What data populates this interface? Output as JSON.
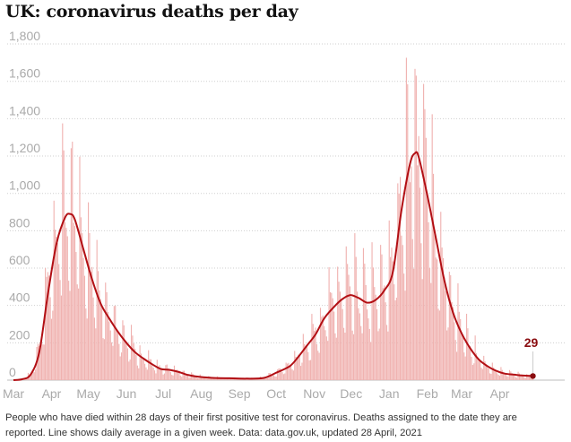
{
  "title": "UK: coronavirus deaths per day",
  "footnote_lines": [
    "People who have died within 28 days of their first positive test for coronavirus. Deaths assigned to the date they are",
    "reported. Line shows daily average in a given week. Data: data.gov.uk, updated 28 April, 2021"
  ],
  "colors": {
    "bars": "#f0b2b0",
    "line": "#b20f14",
    "last_label": "#8a0c10",
    "grid": "#cfcfcf",
    "axis_text": "#aaaaaa",
    "title": "#121212"
  },
  "chart_data": {
    "type": "bar",
    "title": "UK: coronavirus deaths per day",
    "xlabel": "",
    "ylabel": "",
    "x_range": [
      "2020-03-01",
      "2021-04-28"
    ],
    "ylim": [
      0,
      1800
    ],
    "y_ticks": [
      0,
      200,
      400,
      600,
      800,
      1000,
      1200,
      1400,
      1600,
      1800
    ],
    "y_tick_labels": [
      "0",
      "200",
      "400",
      "600",
      "800",
      "1,000",
      "1,200",
      "1,400",
      "1,600",
      "1,800"
    ],
    "x_tick_dates": [
      "2020-03-01",
      "2020-04-01",
      "2020-05-01",
      "2020-06-01",
      "2020-07-01",
      "2020-08-01",
      "2020-09-01",
      "2020-10-01",
      "2020-11-01",
      "2020-12-01",
      "2021-01-01",
      "2021-02-01",
      "2021-03-01",
      "2021-04-01"
    ],
    "x_tick_labels": [
      "Mar",
      "Apr",
      "May",
      "Jun",
      "Jul",
      "Aug",
      "Sep",
      "Oct",
      "Nov",
      "Dec",
      "Jan",
      "Feb",
      "Mar",
      "Apr"
    ],
    "grid": true,
    "bars_label": "daily deaths",
    "line_label": "daily average in a given week",
    "bars_daily_date_range": [
      "2020-03-01",
      "2021-04-28"
    ],
    "daily_average_points": [
      [
        "2020-03-01",
        0
      ],
      [
        "2020-03-08",
        5
      ],
      [
        "2020-03-15",
        30
      ],
      [
        "2020-03-22",
        150
      ],
      [
        "2020-03-29",
        460
      ],
      [
        "2020-04-05",
        730
      ],
      [
        "2020-04-12",
        870
      ],
      [
        "2020-04-16",
        890
      ],
      [
        "2020-04-20",
        860
      ],
      [
        "2020-04-27",
        700
      ],
      [
        "2020-05-04",
        540
      ],
      [
        "2020-05-11",
        410
      ],
      [
        "2020-05-18",
        330
      ],
      [
        "2020-05-25",
        260
      ],
      [
        "2020-06-01",
        200
      ],
      [
        "2020-06-08",
        150
      ],
      [
        "2020-06-15",
        115
      ],
      [
        "2020-06-22",
        85
      ],
      [
        "2020-06-29",
        60
      ],
      [
        "2020-07-06",
        55
      ],
      [
        "2020-07-13",
        45
      ],
      [
        "2020-07-20",
        30
      ],
      [
        "2020-07-27",
        20
      ],
      [
        "2020-08-10",
        12
      ],
      [
        "2020-08-24",
        10
      ],
      [
        "2020-09-07",
        8
      ],
      [
        "2020-09-21",
        12
      ],
      [
        "2020-10-01",
        40
      ],
      [
        "2020-10-12",
        75
      ],
      [
        "2020-10-19",
        125
      ],
      [
        "2020-10-26",
        185
      ],
      [
        "2020-11-02",
        245
      ],
      [
        "2020-11-09",
        330
      ],
      [
        "2020-11-16",
        385
      ],
      [
        "2020-11-23",
        430
      ],
      [
        "2020-11-30",
        455
      ],
      [
        "2020-12-07",
        440
      ],
      [
        "2020-12-14",
        415
      ],
      [
        "2020-12-21",
        430
      ],
      [
        "2020-12-28",
        480
      ],
      [
        "2021-01-04",
        580
      ],
      [
        "2021-01-11",
        910
      ],
      [
        "2021-01-18",
        1160
      ],
      [
        "2021-01-22",
        1215
      ],
      [
        "2021-01-25",
        1195
      ],
      [
        "2021-02-01",
        990
      ],
      [
        "2021-02-08",
        760
      ],
      [
        "2021-02-15",
        530
      ],
      [
        "2021-02-22",
        360
      ],
      [
        "2021-03-01",
        250
      ],
      [
        "2021-03-08",
        170
      ],
      [
        "2021-03-15",
        110
      ],
      [
        "2021-03-22",
        75
      ],
      [
        "2021-03-29",
        50
      ],
      [
        "2021-04-05",
        35
      ],
      [
        "2021-04-12",
        30
      ],
      [
        "2021-04-19",
        25
      ],
      [
        "2021-04-28",
        22
      ]
    ],
    "last_value": {
      "date": "2021-04-28",
      "value": 29,
      "label": "29"
    }
  }
}
